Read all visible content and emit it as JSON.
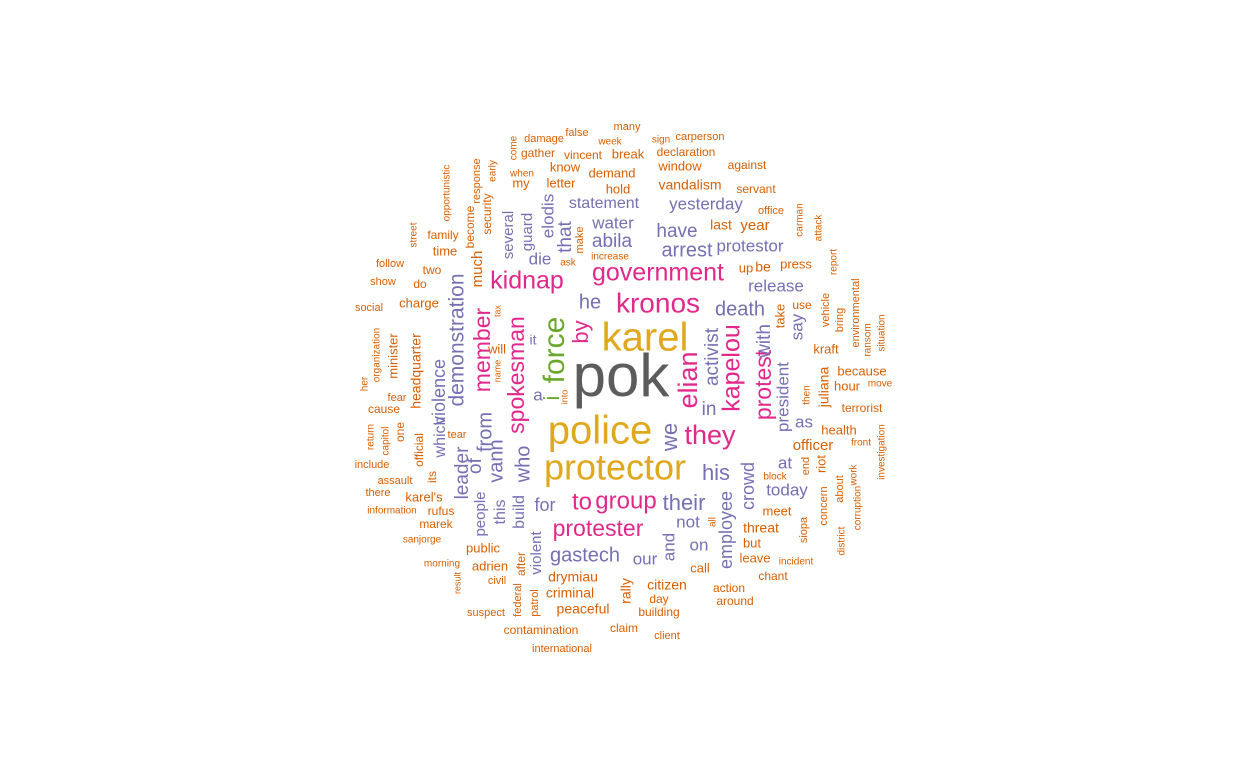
{
  "palette": {
    "gray": "#5c5c5c",
    "gold": "#e0a81c",
    "green": "#6aa82c",
    "magenta": "#e0298a",
    "purple": "#7570b3",
    "orange": "#d95f02"
  },
  "words": [
    {
      "text": "pok",
      "color": "gray",
      "weight": 60
    },
    {
      "text": "karel",
      "color": "gold",
      "weight": 40
    },
    {
      "text": "police",
      "color": "gold",
      "weight": 40
    },
    {
      "text": "protector",
      "color": "gold",
      "weight": 36
    },
    {
      "text": "force",
      "color": "green",
      "weight": 30
    },
    {
      "text": "i",
      "color": "green",
      "weight": 22
    },
    {
      "text": "kronos",
      "color": "magenta",
      "weight": 28
    },
    {
      "text": "government",
      "color": "magenta",
      "weight": 25
    },
    {
      "text": "kidnap",
      "color": "magenta",
      "weight": 25
    },
    {
      "text": "elian",
      "color": "magenta",
      "weight": 27
    },
    {
      "text": "kapelou",
      "color": "magenta",
      "weight": 25
    },
    {
      "text": "they",
      "color": "magenta",
      "weight": 27
    },
    {
      "text": "spokesman",
      "color": "magenta",
      "weight": 23
    },
    {
      "text": "member",
      "color": "magenta",
      "weight": 23
    },
    {
      "text": "by",
      "color": "magenta",
      "weight": 22
    },
    {
      "text": "protest",
      "color": "magenta",
      "weight": 23
    },
    {
      "text": "to",
      "color": "magenta",
      "weight": 24
    },
    {
      "text": "group",
      "color": "magenta",
      "weight": 24
    },
    {
      "text": "protester",
      "color": "magenta",
      "weight": 23
    },
    {
      "text": "he",
      "color": "purple",
      "weight": 20
    },
    {
      "text": "death",
      "color": "purple",
      "weight": 20
    },
    {
      "text": "arrest",
      "color": "purple",
      "weight": 20
    },
    {
      "text": "have",
      "color": "purple",
      "weight": 19
    },
    {
      "text": "abila",
      "color": "purple",
      "weight": 19
    },
    {
      "text": "that",
      "color": "purple",
      "weight": 19
    },
    {
      "text": "elodis",
      "color": "purple",
      "weight": 17
    },
    {
      "text": "water",
      "color": "purple",
      "weight": 17
    },
    {
      "text": "statement",
      "color": "purple",
      "weight": 16
    },
    {
      "text": "yesterday",
      "color": "purple",
      "weight": 17
    },
    {
      "text": "protestor",
      "color": "purple",
      "weight": 17
    },
    {
      "text": "release",
      "color": "purple",
      "weight": 17
    },
    {
      "text": "die",
      "color": "purple",
      "weight": 17
    },
    {
      "text": "guard",
      "color": "purple",
      "weight": 15
    },
    {
      "text": "several",
      "color": "purple",
      "weight": 15
    },
    {
      "text": "demonstration",
      "color": "purple",
      "weight": 21
    },
    {
      "text": "activist",
      "color": "purple",
      "weight": 19
    },
    {
      "text": "with",
      "color": "purple",
      "weight": 19
    },
    {
      "text": "in",
      "color": "purple",
      "weight": 19
    },
    {
      "text": "we",
      "color": "purple",
      "weight": 22
    },
    {
      "text": "his",
      "color": "purple",
      "weight": 22
    },
    {
      "text": "their",
      "color": "purple",
      "weight": 22
    },
    {
      "text": "who",
      "color": "purple",
      "weight": 20
    },
    {
      "text": "vann",
      "color": "purple",
      "weight": 20
    },
    {
      "text": "from",
      "color": "purple",
      "weight": 20
    },
    {
      "text": "of",
      "color": "purple",
      "weight": 19
    },
    {
      "text": "leader",
      "color": "purple",
      "weight": 19
    },
    {
      "text": "violence",
      "color": "purple",
      "weight": 18
    },
    {
      "text": "which",
      "color": "purple",
      "weight": 16
    },
    {
      "text": "president",
      "color": "purple",
      "weight": 17
    },
    {
      "text": "as",
      "color": "purple",
      "weight": 17
    },
    {
      "text": "say",
      "color": "purple",
      "weight": 17
    },
    {
      "text": "crowd",
      "color": "purple",
      "weight": 18
    },
    {
      "text": "employee",
      "color": "purple",
      "weight": 18
    },
    {
      "text": "at",
      "color": "purple",
      "weight": 17
    },
    {
      "text": "today",
      "color": "purple",
      "weight": 17
    },
    {
      "text": "for",
      "color": "purple",
      "weight": 18
    },
    {
      "text": "gastech",
      "color": "purple",
      "weight": 20
    },
    {
      "text": "our",
      "color": "purple",
      "weight": 17
    },
    {
      "text": "and",
      "color": "purple",
      "weight": 17
    },
    {
      "text": "on",
      "color": "purple",
      "weight": 17
    },
    {
      "text": "not",
      "color": "purple",
      "weight": 17
    },
    {
      "text": "build",
      "color": "purple",
      "weight": 16
    },
    {
      "text": "this",
      "color": "purple",
      "weight": 16
    },
    {
      "text": "people",
      "color": "purple",
      "weight": 15
    },
    {
      "text": "violent",
      "color": "purple",
      "weight": 15
    },
    {
      "text": "a",
      "color": "purple",
      "weight": 17
    },
    {
      "text": "it",
      "color": "purple",
      "weight": 14
    },
    {
      "text": "much",
      "color": "orange",
      "weight": 15
    },
    {
      "text": "will",
      "color": "orange",
      "weight": 13
    },
    {
      "text": "headquarter",
      "color": "orange",
      "weight": 14
    },
    {
      "text": "vandalism",
      "color": "orange",
      "weight": 14
    },
    {
      "text": "last",
      "color": "orange",
      "weight": 14
    },
    {
      "text": "year",
      "color": "orange",
      "weight": 15
    },
    {
      "text": "be",
      "color": "orange",
      "weight": 14
    },
    {
      "text": "juliana",
      "color": "orange",
      "weight": 14
    },
    {
      "text": "officer",
      "color": "orange",
      "weight": 15
    },
    {
      "text": "threat",
      "color": "orange",
      "weight": 14
    },
    {
      "text": "drymiau",
      "color": "orange",
      "weight": 14
    },
    {
      "text": "citizen",
      "color": "orange",
      "weight": 14
    },
    {
      "text": "rally",
      "color": "orange",
      "weight": 14
    },
    {
      "text": "kraft",
      "color": "orange",
      "weight": 13
    },
    {
      "text": "make",
      "color": "orange",
      "weight": 11
    },
    {
      "text": "gather",
      "color": "orange",
      "weight": 12
    },
    {
      "text": "my",
      "color": "orange",
      "weight": 13
    },
    {
      "text": "know",
      "color": "orange",
      "weight": 13
    },
    {
      "text": "demand",
      "color": "orange",
      "weight": 13
    },
    {
      "text": "window",
      "color": "orange",
      "weight": 13
    },
    {
      "text": "letter",
      "color": "orange",
      "weight": 13
    },
    {
      "text": "hold",
      "color": "orange",
      "weight": 13
    },
    {
      "text": "break",
      "color": "orange",
      "weight": 13
    },
    {
      "text": "vincent",
      "color": "orange",
      "weight": 12
    },
    {
      "text": "declaration",
      "color": "orange",
      "weight": 12
    },
    {
      "text": "against",
      "color": "orange",
      "weight": 12
    },
    {
      "text": "servant",
      "color": "orange",
      "weight": 12
    },
    {
      "text": "office",
      "color": "orange",
      "weight": 11
    },
    {
      "text": "press",
      "color": "orange",
      "weight": 13
    },
    {
      "text": "up",
      "color": "orange",
      "weight": 13
    },
    {
      "text": "take",
      "color": "orange",
      "weight": 13
    },
    {
      "text": "use",
      "color": "orange",
      "weight": 12
    },
    {
      "text": "hour",
      "color": "orange",
      "weight": 13
    },
    {
      "text": "because",
      "color": "orange",
      "weight": 13
    },
    {
      "text": "terrorist",
      "color": "orange",
      "weight": 12
    },
    {
      "text": "health",
      "color": "orange",
      "weight": 13
    },
    {
      "text": "riot",
      "color": "orange",
      "weight": 13
    },
    {
      "text": "end",
      "color": "orange",
      "weight": 11
    },
    {
      "text": "meet",
      "color": "orange",
      "weight": 13
    },
    {
      "text": "but",
      "color": "orange",
      "weight": 13
    },
    {
      "text": "leave",
      "color": "orange",
      "weight": 13
    },
    {
      "text": "call",
      "color": "orange",
      "weight": 13
    },
    {
      "text": "chant",
      "color": "orange",
      "weight": 12
    },
    {
      "text": "action",
      "color": "orange",
      "weight": 12
    },
    {
      "text": "around",
      "color": "orange",
      "weight": 12
    },
    {
      "text": "day",
      "color": "orange",
      "weight": 12
    },
    {
      "text": "building",
      "color": "orange",
      "weight": 12
    },
    {
      "text": "peaceful",
      "color": "orange",
      "weight": 14
    },
    {
      "text": "criminal",
      "color": "orange",
      "weight": 14
    },
    {
      "text": "public",
      "color": "orange",
      "weight": 13
    },
    {
      "text": "adrien",
      "color": "orange",
      "weight": 13
    },
    {
      "text": "after",
      "color": "orange",
      "weight": 12
    },
    {
      "text": "civil",
      "color": "orange",
      "weight": 11
    },
    {
      "text": "federal",
      "color": "orange",
      "weight": 11
    },
    {
      "text": "patrol",
      "color": "orange",
      "weight": 11
    },
    {
      "text": "suspect",
      "color": "orange",
      "weight": 11
    },
    {
      "text": "contamination",
      "color": "orange",
      "weight": 12
    },
    {
      "text": "claim",
      "color": "orange",
      "weight": 12
    },
    {
      "text": "client",
      "color": "orange",
      "weight": 11
    },
    {
      "text": "international",
      "color": "orange",
      "weight": 11
    },
    {
      "text": "marek",
      "color": "orange",
      "weight": 12
    },
    {
      "text": "rufus",
      "color": "orange",
      "weight": 12
    },
    {
      "text": "karel's",
      "color": "orange",
      "weight": 13
    },
    {
      "text": "its",
      "color": "orange",
      "weight": 12
    },
    {
      "text": "official",
      "color": "orange",
      "weight": 12
    },
    {
      "text": "tear",
      "color": "orange",
      "weight": 11
    },
    {
      "text": "cause",
      "color": "orange",
      "weight": 12
    },
    {
      "text": "one",
      "color": "orange",
      "weight": 12
    },
    {
      "text": "fear",
      "color": "orange",
      "weight": 11
    },
    {
      "text": "minister",
      "color": "orange",
      "weight": 13
    },
    {
      "text": "charge",
      "color": "orange",
      "weight": 13
    },
    {
      "text": "do",
      "color": "orange",
      "weight": 12
    },
    {
      "text": "two",
      "color": "orange",
      "weight": 12
    },
    {
      "text": "time",
      "color": "orange",
      "weight": 13
    },
    {
      "text": "family",
      "color": "orange",
      "weight": 12
    },
    {
      "text": "become",
      "color": "orange",
      "weight": 12
    },
    {
      "text": "security",
      "color": "orange",
      "weight": 12
    },
    {
      "text": "response",
      "color": "orange",
      "weight": 11
    },
    {
      "text": "early",
      "color": "orange",
      "weight": 10
    },
    {
      "text": "opportunistic",
      "color": "orange",
      "weight": 10
    },
    {
      "text": "street",
      "color": "orange",
      "weight": 10
    },
    {
      "text": "follow",
      "color": "orange",
      "weight": 11
    },
    {
      "text": "show",
      "color": "orange",
      "weight": 11
    },
    {
      "text": "social",
      "color": "orange",
      "weight": 11
    },
    {
      "text": "organization",
      "color": "orange",
      "weight": 10
    },
    {
      "text": "her",
      "color": "orange",
      "weight": 10
    },
    {
      "text": "return",
      "color": "orange",
      "weight": 10
    },
    {
      "text": "capitol",
      "color": "orange",
      "weight": 10
    },
    {
      "text": "include",
      "color": "orange",
      "weight": 11
    },
    {
      "text": "assault",
      "color": "orange",
      "weight": 11
    },
    {
      "text": "there",
      "color": "orange",
      "weight": 11
    },
    {
      "text": "information",
      "color": "orange",
      "weight": 10
    },
    {
      "text": "sanjorge",
      "color": "orange",
      "weight": 10
    },
    {
      "text": "morning",
      "color": "orange",
      "weight": 10
    },
    {
      "text": "result",
      "color": "orange",
      "weight": 9
    },
    {
      "text": "name",
      "color": "orange",
      "weight": 9
    },
    {
      "text": "tax",
      "color": "orange",
      "weight": 9
    },
    {
      "text": "ask",
      "color": "orange",
      "weight": 10
    },
    {
      "text": "increase",
      "color": "orange",
      "weight": 10
    },
    {
      "text": "into",
      "color": "orange",
      "weight": 9
    },
    {
      "text": "come",
      "color": "orange",
      "weight": 10
    },
    {
      "text": "when",
      "color": "orange",
      "weight": 10
    },
    {
      "text": "damage",
      "color": "orange",
      "weight": 11
    },
    {
      "text": "false",
      "color": "orange",
      "weight": 11
    },
    {
      "text": "week",
      "color": "orange",
      "weight": 10
    },
    {
      "text": "many",
      "color": "orange",
      "weight": 11
    },
    {
      "text": "sign",
      "color": "orange",
      "weight": 10
    },
    {
      "text": "carperson",
      "color": "orange",
      "weight": 11
    },
    {
      "text": "carman",
      "color": "orange",
      "weight": 10
    },
    {
      "text": "attack",
      "color": "orange",
      "weight": 10
    },
    {
      "text": "report",
      "color": "orange",
      "weight": 10
    },
    {
      "text": "vehicle",
      "color": "orange",
      "weight": 11
    },
    {
      "text": "bring",
      "color": "orange",
      "weight": 11
    },
    {
      "text": "environmental",
      "color": "orange",
      "weight": 11
    },
    {
      "text": "ransom",
      "color": "orange",
      "weight": 10
    },
    {
      "text": "situation",
      "color": "orange",
      "weight": 10
    },
    {
      "text": "move",
      "color": "orange",
      "weight": 10
    },
    {
      "text": "then",
      "color": "orange",
      "weight": 10
    },
    {
      "text": "front",
      "color": "orange",
      "weight": 10
    },
    {
      "text": "investigation",
      "color": "orange",
      "weight": 10
    },
    {
      "text": "work",
      "color": "orange",
      "weight": 10
    },
    {
      "text": "about",
      "color": "orange",
      "weight": 11
    },
    {
      "text": "concern",
      "color": "orange",
      "weight": 11
    },
    {
      "text": "corruption",
      "color": "orange",
      "weight": 10
    },
    {
      "text": "district",
      "color": "orange",
      "weight": 10
    },
    {
      "text": "siopa",
      "color": "orange",
      "weight": 11
    },
    {
      "text": "incident",
      "color": "orange",
      "weight": 10
    },
    {
      "text": "block",
      "color": "orange",
      "weight": 10
    },
    {
      "text": "all",
      "color": "orange",
      "weight": 10
    },
    {
      "text": "no",
      "color": "orange",
      "weight": 10
    },
    {
      "text": "tiskele",
      "color": "orange",
      "weight": 10
    },
    {
      "text": "receive",
      "color": "orange",
      "weight": 10
    }
  ]
}
